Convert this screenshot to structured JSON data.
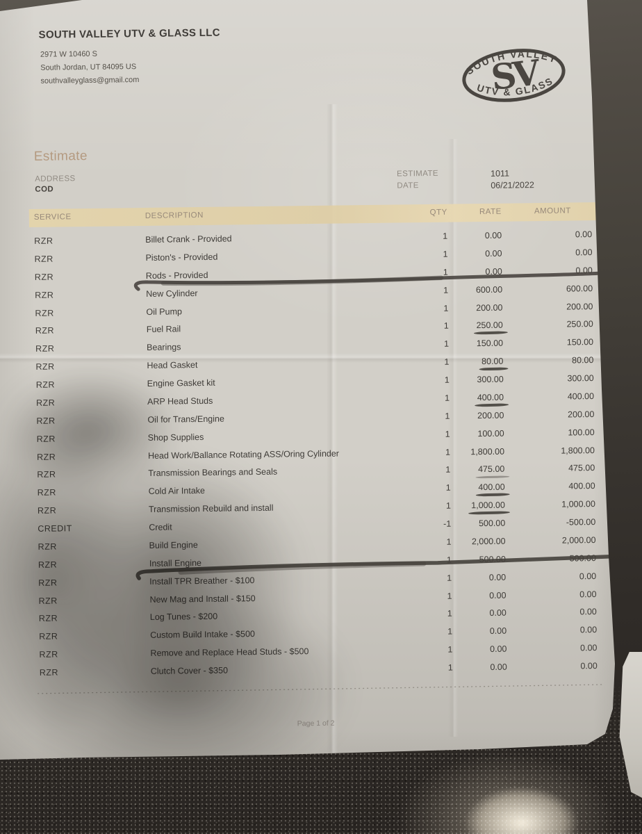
{
  "company": {
    "name": "SOUTH VALLEY UTV &  GLASS LLC",
    "address_line1": "2971 W 10460 S",
    "address_line2": "South Jordan, UT  84095 US",
    "email": "southvalleyglass@gmail.com"
  },
  "logo": {
    "top_text": "SOUTH VALLEY",
    "monogram": "SV",
    "bottom_text": "UTV & GLASS"
  },
  "estimate": {
    "title": "Estimate",
    "address_label": "ADDRESS",
    "address_value": "COD",
    "number_label": "ESTIMATE",
    "number": "1011",
    "date_label": "DATE",
    "date": "06/21/2022"
  },
  "table": {
    "headers": {
      "service": "SERVICE",
      "description": "DESCRIPTION",
      "qty": "QTY",
      "rate": "RATE",
      "amount": "AMOUNT"
    },
    "rows": [
      {
        "service": "RZR",
        "description": "Billet Crank - Provided",
        "qty": "1",
        "rate": "0.00",
        "amount": "0.00",
        "rate_underline": false
      },
      {
        "service": "RZR",
        "description": "Piston's - Provided",
        "qty": "1",
        "rate": "0.00",
        "amount": "0.00",
        "rate_underline": false
      },
      {
        "service": "RZR",
        "description": "Rods - Provided",
        "qty": "1",
        "rate": "0.00",
        "amount": "0.00",
        "rate_underline": false
      },
      {
        "service": "RZR",
        "description": "New Cylinder",
        "qty": "1",
        "rate": "600.00",
        "amount": "600.00",
        "rate_underline": false
      },
      {
        "service": "RZR",
        "description": "Oil Pump",
        "qty": "1",
        "rate": "200.00",
        "amount": "200.00",
        "rate_underline": false
      },
      {
        "service": "RZR",
        "description": "Fuel Rail",
        "qty": "1",
        "rate": "250.00",
        "amount": "250.00",
        "rate_underline": "dark"
      },
      {
        "service": "RZR",
        "description": "Bearings",
        "qty": "1",
        "rate": "150.00",
        "amount": "150.00",
        "rate_underline": false
      },
      {
        "service": "RZR",
        "description": "Head Gasket",
        "qty": "1",
        "rate": "80.00",
        "amount": "80.00",
        "rate_underline": "dark"
      },
      {
        "service": "RZR",
        "description": "Engine Gasket kit",
        "qty": "1",
        "rate": "300.00",
        "amount": "300.00",
        "rate_underline": false
      },
      {
        "service": "RZR",
        "description": "ARP Head Studs",
        "qty": "1",
        "rate": "400.00",
        "amount": "400.00",
        "rate_underline": "dark"
      },
      {
        "service": "RZR",
        "description": "Oil for Trans/Engine",
        "qty": "1",
        "rate": "200.00",
        "amount": "200.00",
        "rate_underline": false
      },
      {
        "service": "RZR",
        "description": "Shop Supplies",
        "qty": "1",
        "rate": "100.00",
        "amount": "100.00",
        "rate_underline": false
      },
      {
        "service": "RZR",
        "description": "Head Work/Ballance Rotating ASS/Oring Cylinder",
        "qty": "1",
        "rate": "1,800.00",
        "amount": "1,800.00",
        "rate_underline": false
      },
      {
        "service": "RZR",
        "description": "Transmission Bearings and Seals",
        "qty": "1",
        "rate": "475.00",
        "amount": "475.00",
        "rate_underline": "faint"
      },
      {
        "service": "RZR",
        "description": "Cold Air Intake",
        "qty": "1",
        "rate": "400.00",
        "amount": "400.00",
        "rate_underline": "dark"
      },
      {
        "service": "RZR",
        "description": "Transmission Rebuild and install",
        "qty": "1",
        "rate": "1,000.00",
        "amount": "1,000.00",
        "rate_underline": "dark"
      },
      {
        "service": "CREDIT",
        "description": "Credit",
        "qty": "-1",
        "rate": "500.00",
        "amount": "-500.00",
        "rate_underline": false
      },
      {
        "service": "RZR",
        "description": "Build Engine",
        "qty": "1",
        "rate": "2,000.00",
        "amount": "2,000.00",
        "rate_underline": false
      },
      {
        "service": "RZR",
        "description": "Install Engine",
        "qty": "1",
        "rate": "500.00",
        "amount": "500.00",
        "rate_underline": false
      },
      {
        "service": "RZR",
        "description": "Install TPR Breather - $100",
        "qty": "1",
        "rate": "0.00",
        "amount": "0.00",
        "rate_underline": false
      },
      {
        "service": "RZR",
        "description": "New Mag and Install - $150",
        "qty": "1",
        "rate": "0.00",
        "amount": "0.00",
        "rate_underline": false
      },
      {
        "service": "RZR",
        "description": "Log Tunes - $200",
        "qty": "1",
        "rate": "0.00",
        "amount": "0.00",
        "rate_underline": false
      },
      {
        "service": "RZR",
        "description": "Custom Build Intake - $500",
        "qty": "1",
        "rate": "0.00",
        "amount": "0.00",
        "rate_underline": false
      },
      {
        "service": "RZR",
        "description": "Remove and Replace Head Studs - $500",
        "qty": "1",
        "rate": "0.00",
        "amount": "0.00",
        "rate_underline": false
      },
      {
        "service": "RZR",
        "description": "Clutch Cover - $350",
        "qty": "1",
        "rate": "0.00",
        "amount": "0.00",
        "rate_underline": false
      }
    ]
  },
  "footer": {
    "page": "Page 1 of 2"
  },
  "colors": {
    "paper": "#d2cfc8",
    "header_band": "#e2d2a9",
    "title_accent": "#b49a80",
    "label_gray": "#918b83",
    "ink": "#3e3b37",
    "pen_ink": "#45413c",
    "table_surface": "#46423b"
  }
}
